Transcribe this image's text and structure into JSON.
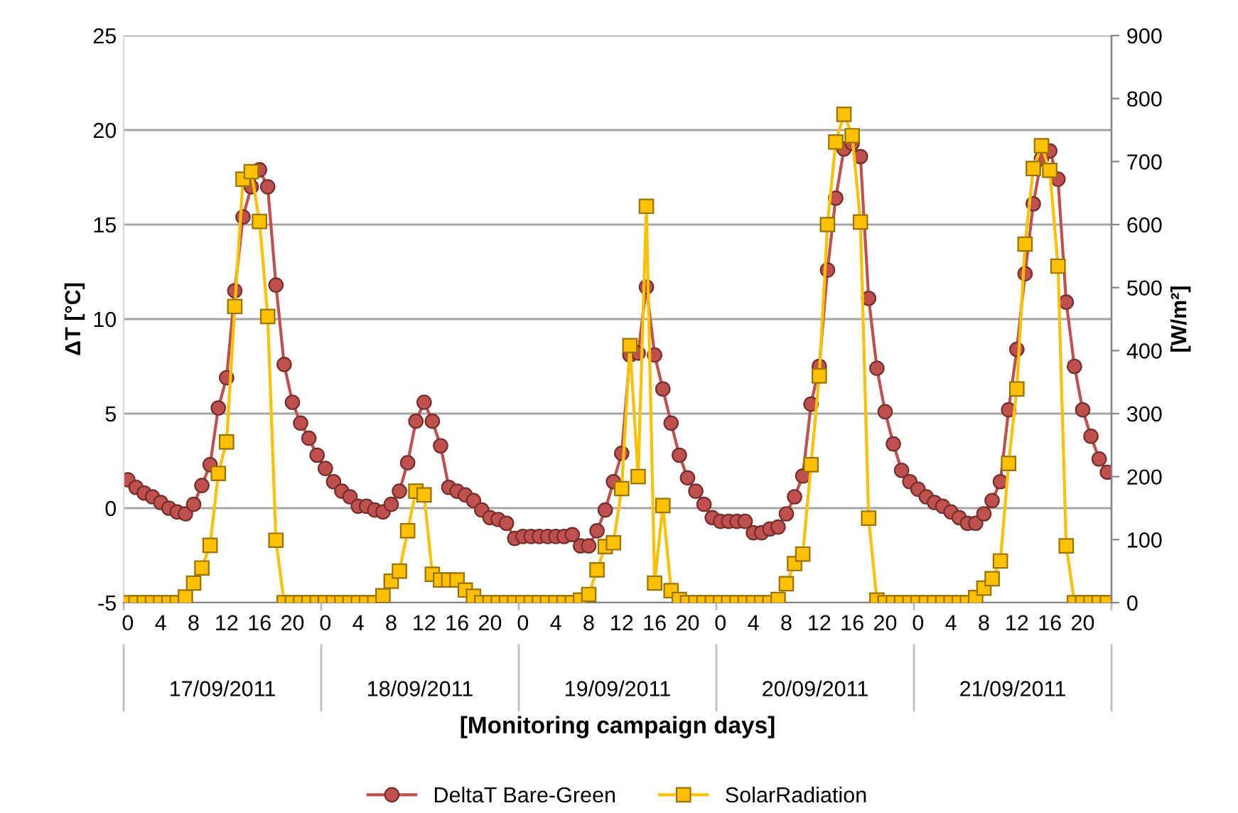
{
  "chart_data": {
    "type": "line",
    "categories": [
      "0",
      null,
      null,
      null,
      "4",
      null,
      null,
      null,
      "8",
      null,
      null,
      null,
      "12",
      null,
      null,
      null,
      "16",
      null,
      null,
      null,
      "20",
      null,
      null,
      null,
      "0",
      null,
      null,
      null,
      "4",
      null,
      null,
      null,
      "8",
      null,
      null,
      null,
      "12",
      null,
      null,
      null,
      "16",
      null,
      null,
      null,
      "20",
      null,
      null,
      null,
      "0",
      null,
      null,
      null,
      "4",
      null,
      null,
      null,
      "8",
      null,
      null,
      null,
      "12",
      null,
      null,
      null,
      "16",
      null,
      null,
      null,
      "20",
      null,
      null,
      null,
      "0",
      null,
      null,
      null,
      "4",
      null,
      null,
      null,
      "8",
      null,
      null,
      null,
      "12",
      null,
      null,
      null,
      "16",
      null,
      null,
      null,
      "20",
      null,
      null,
      null,
      "0",
      null,
      null,
      null,
      "4",
      null,
      null,
      null,
      "8",
      null,
      null,
      null,
      "12",
      null,
      null,
      null,
      "16",
      null,
      null,
      null,
      "20",
      null,
      null,
      null
    ],
    "series": [
      {
        "name": "DeltaT Bare-Green",
        "color": "#c0504d",
        "marker": "circle",
        "values": [
          1.5,
          1.1,
          0.8,
          0.6,
          0.3,
          0.0,
          -0.2,
          -0.3,
          0.2,
          1.2,
          2.3,
          5.3,
          6.9,
          11.5,
          15.4,
          17.0,
          17.9,
          17.0,
          11.8,
          7.6,
          5.6,
          4.5,
          3.7,
          2.8,
          2.1,
          1.4,
          0.9,
          0.6,
          0.1,
          0.1,
          -0.1,
          -0.2,
          0.2,
          0.9,
          2.4,
          4.6,
          5.6,
          4.6,
          3.3,
          1.1,
          0.9,
          0.7,
          0.4,
          -0.1,
          -0.5,
          -0.6,
          -0.8,
          -1.6,
          -1.5,
          -1.5,
          -1.5,
          -1.5,
          -1.5,
          -1.5,
          -1.4,
          -2.0,
          -2.0,
          -1.2,
          -0.1,
          1.4,
          2.9,
          8.1,
          8.2,
          11.7,
          8.1,
          6.3,
          4.5,
          2.8,
          1.6,
          0.9,
          0.2,
          -0.5,
          -0.7,
          -0.7,
          -0.7,
          -0.7,
          -1.3,
          -1.3,
          -1.1,
          -1.0,
          -0.3,
          0.6,
          1.7,
          5.5,
          7.5,
          12.6,
          16.4,
          19.0,
          19.3,
          18.6,
          11.1,
          7.4,
          5.1,
          3.4,
          2.0,
          1.4,
          1.0,
          0.6,
          0.3,
          0.1,
          -0.2,
          -0.5,
          -0.8,
          -0.8,
          -0.3,
          0.4,
          1.4,
          5.2,
          8.4,
          12.4,
          16.1,
          18.5,
          18.9,
          17.4,
          10.9,
          7.5,
          5.2,
          3.8,
          2.6,
          1.9
        ]
      },
      {
        "name": "SolarRadiation",
        "color": "#ffc000",
        "marker": "square",
        "axis": "y2",
        "values": [
          0,
          0,
          0,
          0,
          0,
          0,
          0,
          9,
          31,
          55,
          91,
          205,
          255,
          470,
          672,
          684,
          605,
          454,
          99,
          0,
          0,
          0,
          0,
          0,
          0,
          0,
          0,
          0,
          0,
          0,
          0,
          11,
          34,
          50,
          114,
          177,
          171,
          45,
          36,
          36,
          36,
          20,
          10,
          0,
          0,
          0,
          0,
          0,
          0,
          0,
          0,
          0,
          0,
          0,
          0,
          4,
          13,
          52,
          89,
          95,
          181,
          408,
          200,
          629,
          31,
          154,
          19,
          5,
          0,
          0,
          0,
          0,
          0,
          0,
          0,
          0,
          0,
          0,
          0,
          5,
          30,
          62,
          77,
          219,
          360,
          600,
          731,
          775,
          741,
          604,
          134,
          4,
          0,
          0,
          0,
          0,
          0,
          0,
          0,
          0,
          0,
          0,
          0,
          8,
          23,
          38,
          66,
          221,
          339,
          569,
          689,
          725,
          686,
          534,
          90,
          0,
          0,
          0,
          0,
          0
        ]
      }
    ],
    "ylim": [
      -5,
      25
    ],
    "yticks": [
      -5,
      0,
      5,
      10,
      15,
      20,
      25
    ],
    "y2lim": [
      0,
      900
    ],
    "y2ticks": [
      0,
      100,
      200,
      300,
      400,
      500,
      600,
      700,
      800,
      900
    ],
    "ylabel": "ΔT [°C]",
    "y2label": "[W/m²]",
    "xlabel": "[Monitoring campaign days]",
    "annotations": [
      "17/09/2011",
      "18/09/2011",
      "19/09/2011",
      "20/09/2011",
      "21/09/2011"
    ],
    "grid": "y",
    "legend": "bottom"
  }
}
